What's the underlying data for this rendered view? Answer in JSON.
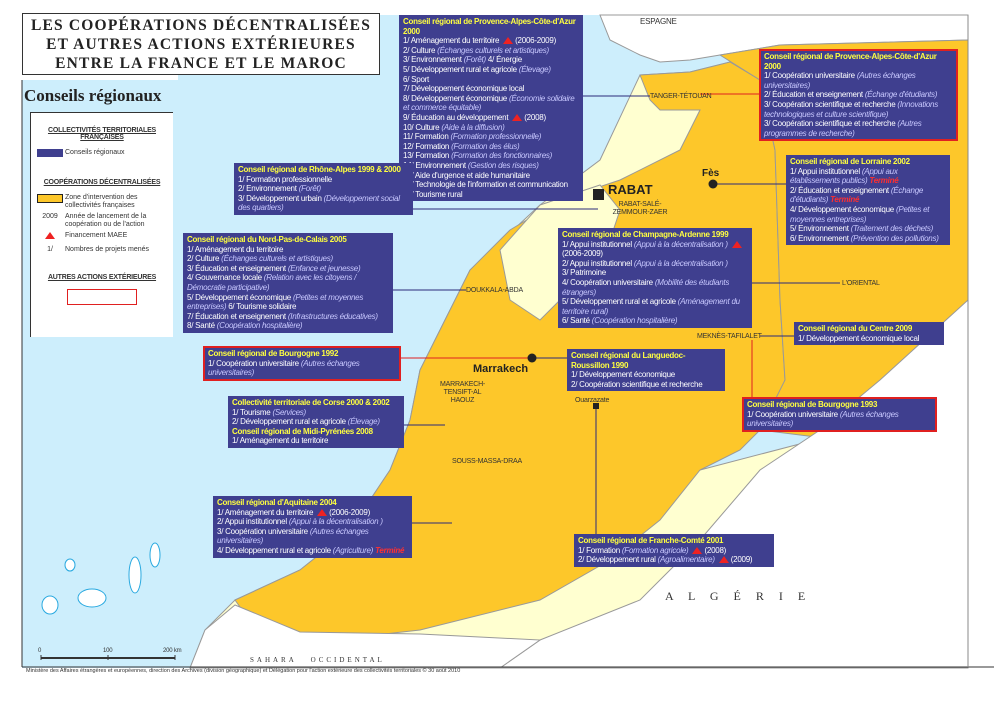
{
  "title": [
    "LES COOPÉRATIONS DÉCENTRALISÉES",
    "ET AUTRES ACTIONS EXTÉRIEURES",
    "ENTRE LA FRANCE ET LE MAROC"
  ],
  "subtitle": "Conseils régionaux",
  "colors": {
    "council_box": "#3f3f8f",
    "intervention_zone": "#fdc72a",
    "other_land": "#ffffd0",
    "sea": "#cdeefc",
    "maee": "#e22222",
    "other_actions_border": "#e02020",
    "title_text": "#ffff40"
  },
  "legend": {
    "section1": "COLLECTIVITÉS TERRITORIALES FRANÇAISES",
    "councils": "Conseils régionaux",
    "section2": "COOPÉRATIONS DÉCENTRALISÉES",
    "zone": "Zone d'intervention des collectivités françaises",
    "year_sample": "2009",
    "year": "Année de lancement de la coopération ou de l'action",
    "maee": "Financement MAEE",
    "num_sample": "1/",
    "num": "Nombres de projets menés",
    "section3": "AUTRES ACTIONS EXTÉRIEURES"
  },
  "map_labels": {
    "spain": "ESPAGNE",
    "tanger": "TANGER-TÉTOUAN",
    "rabat": "RABAT",
    "rabat_region": "RABAT-SALÉ-ZEMMOUR-ZAER",
    "fes": "Fès",
    "oriental": "L'ORIENTAL",
    "doukkala": "DOUKKALA-ABDA",
    "meknes": "MEKNÈS-TAFILALET",
    "marrakech": "Marrakech",
    "marrakech_region": "MARRAKECH-TENSIFT-AL HAOUZ",
    "ouarzazate": "Ouarzazate",
    "souss": "SOUSS-MASSA-DRAA",
    "algeria": "A L G É R I E",
    "sahara": "SAHARA   OCCIDENTAL"
  },
  "scale": {
    "s0": "0",
    "s100": "100",
    "s200": "200 km"
  },
  "footer": "Ministère des Affaires étrangères et européennes, direction des Archives (division géographique) et Délégation pour l'action extérieure des collectivités territoriales    © 30 août 2010",
  "boxes": [
    {
      "id": "paca-2000",
      "red": false,
      "lines": [
        {
          "t": "Conseil régional de Provence-Alpes-Côte-d'Azur 2000"
        },
        {
          "n": "1/",
          "l": "Aménagement du territoire",
          "m": true,
          "y": "(2006-2009)"
        },
        {
          "n": "2/",
          "l": "Culture",
          "d": "(Échanges culturels et artistiques)"
        },
        {
          "n": "3/",
          "l": "Environnement",
          "d": "(Forêt)",
          "x": "4/  Énergie"
        },
        {
          "n": "5/",
          "l": "Développement rural et agricole",
          "d": "(Élevage)"
        },
        {
          "n": "6/",
          "l": "Sport"
        },
        {
          "n": "7/",
          "l": "Développement économique local"
        },
        {
          "n": "8/",
          "l": "Développement économique",
          "d": "(Économie solidaire et commerce équitable)"
        },
        {
          "n": "9/",
          "l": "Éducation au développement",
          "m": true,
          "y": "(2008)"
        },
        {
          "n": "10/",
          "l": "Culture",
          "d": "(Aide à la diffusion)"
        },
        {
          "n": "11/",
          "l": "Formation",
          "d": "(Formation professionnelle)"
        },
        {
          "n": "12/",
          "l": "Formation",
          "d": "(Formation des élus)"
        },
        {
          "n": "13/",
          "l": "Formation",
          "d": "(Formation des fonctionnaires)"
        },
        {
          "n": "14/",
          "l": "Environnement",
          "d": "(Gestion des risques)"
        },
        {
          "n": "15/",
          "l": "Aide d'urgence et aide humanitaire"
        },
        {
          "n": "16/",
          "l": "Technologie de l'information et communication"
        },
        {
          "n": "17/",
          "l": "Tourisme rural"
        }
      ]
    },
    {
      "id": "paca-2000-other",
      "red": true,
      "lines": [
        {
          "t": "Conseil régional de Provence-Alpes-Côte-d'Azur 2000"
        },
        {
          "n": "1/",
          "l": "Coopération universitaire",
          "d": "(Autres échanges universitaires)"
        },
        {
          "n": "2/",
          "l": "Éducation et enseignement",
          "d": "(Échange d'étudiants)"
        },
        {
          "n": "3/",
          "l": "Coopération scientifique et recherche",
          "d": "(Innovations technologiques et culture scientifique)"
        },
        {
          "n": "3/",
          "l": "Coopération scientifique et recherche",
          "d": "(Autres programmes de recherche)"
        }
      ]
    },
    {
      "id": "lorraine-2002",
      "red": false,
      "lines": [
        {
          "t": "Conseil régional de Lorraine 2002"
        },
        {
          "n": "1/",
          "l": "Appui institutionnel",
          "d": "(Appui aux établissements publics)",
          "s": "Terminé"
        },
        {
          "n": "2/",
          "l": "Éducation et enseignement",
          "d": "(Échange d'étudiants)",
          "s": "Terminé"
        },
        {
          "n": "4/",
          "l": "Développement économique",
          "d": "(Petites et moyennes entreprises)"
        },
        {
          "n": "5/",
          "l": "Environnement",
          "d": "(Traitement des déchets)"
        },
        {
          "n": "6/",
          "l": "Environnement",
          "d": "(Prévention des pollutions)"
        }
      ]
    },
    {
      "id": "rhone-alpes",
      "red": false,
      "lines": [
        {
          "t": "Conseil régional de Rhône-Alpes 1999 & 2000"
        },
        {
          "n": "1/",
          "l": "Formation professionnelle"
        },
        {
          "n": "2/",
          "l": "Environnement",
          "d": "(Forêt)"
        },
        {
          "n": "3/",
          "l": "Développement urbain",
          "d": "(Développement social des quartiers)"
        }
      ]
    },
    {
      "id": "nord-pas-de-calais",
      "red": false,
      "lines": [
        {
          "t": "Conseil régional du Nord-Pas-de-Calais 2005"
        },
        {
          "n": "1/",
          "l": "Aménagement du territoire"
        },
        {
          "n": "2/",
          "l": "Culture",
          "d": "(Échanges culturels et artistiques)"
        },
        {
          "n": "3/",
          "l": "Éducation et enseignement",
          "d": "(Enfance et jeunesse)"
        },
        {
          "n": "4/",
          "l": "Gouvernance locale",
          "d": "(Relation avec les citoyens / Démocratie participative)"
        },
        {
          "n": "5/",
          "l": "Développement économique",
          "d": "(Petites et moyennes entreprises)",
          "x": "6/  Tourisme solidaire"
        },
        {
          "n": "7/",
          "l": "Éducation et enseignement",
          "d": "(Infrastructures éducatives)"
        },
        {
          "n": "8/",
          "l": "Santé",
          "d": "(Coopération hospitalière)"
        }
      ]
    },
    {
      "id": "bourgogne-1992",
      "red": true,
      "lines": [
        {
          "t": "Conseil régional de Bourgogne 1992"
        },
        {
          "n": "1/",
          "l": "Coopération universitaire",
          "d": "(Autres échanges universitaires)"
        }
      ]
    },
    {
      "id": "champagne-ardenne",
      "red": false,
      "lines": [
        {
          "t": "Conseil régional de Champagne-Ardenne 1999"
        },
        {
          "n": "1/",
          "l": "Appui institutionnel",
          "d": "(Appui à la décentralisation )",
          "m": true,
          "y": "(2006-2009)"
        },
        {
          "n": "2/",
          "l": "Appui institutionnel",
          "d": "(Appui à la décentralisation )"
        },
        {
          "n": "3/",
          "l": "Patrimoine"
        },
        {
          "n": "4/",
          "l": "Coopération universitaire",
          "d": "(Mobilité des étudiants étrangers)"
        },
        {
          "n": "5/",
          "l": "Développement rural et agricole",
          "d": "(Aménagement du territoire rural)"
        },
        {
          "n": "6/",
          "l": "Santé",
          "d": "(Coopération hospitalière)"
        }
      ]
    },
    {
      "id": "languedoc",
      "red": false,
      "lines": [
        {
          "t": "Conseil régional du Languedoc-Roussillon 1990"
        },
        {
          "n": "1/",
          "l": "Développement économique"
        },
        {
          "n": "2/",
          "l": "Coopération scientifique et recherche"
        }
      ]
    },
    {
      "id": "centre-2009",
      "red": false,
      "lines": [
        {
          "t": "Conseil régional du Centre 2009"
        },
        {
          "n": "1/",
          "l": "Développement économique local"
        }
      ]
    },
    {
      "id": "bourgogne-1993",
      "red": true,
      "lines": [
        {
          "t": "Conseil régional de Bourgogne 1993"
        },
        {
          "n": "1/",
          "l": "Coopération universitaire",
          "d": "(Autres échanges universitaires)"
        }
      ]
    },
    {
      "id": "corse-midi",
      "red": false,
      "lines": [
        {
          "t": "Collectivité territoriale de Corse 2000 & 2002"
        },
        {
          "n": "1/",
          "l": "Tourisme",
          "d": "(Services)"
        },
        {
          "n": "2/",
          "l": "Développement rural et agricole",
          "d": "(Élevage)"
        },
        {
          "t": "Conseil régional de Midi-Pyrénées 2008"
        },
        {
          "n": "1/",
          "l": "Aménagement du territoire"
        }
      ]
    },
    {
      "id": "aquitaine",
      "red": false,
      "lines": [
        {
          "t": "Conseil régional d'Aquitaine 2004"
        },
        {
          "n": "1/",
          "l": "Aménagement du territoire",
          "m": true,
          "y": "(2006-2009)"
        },
        {
          "n": "2/",
          "l": "Appui institutionnel",
          "d": "(Appui à la décentralisation )"
        },
        {
          "n": "3/",
          "l": "Coopération universitaire",
          "d": "(Autres échanges universitaires)"
        },
        {
          "n": "4/",
          "l": "Développement rural et agricole",
          "d": "(Agriculture)",
          "s": "Terminé"
        }
      ]
    },
    {
      "id": "franche-comte",
      "red": false,
      "lines": [
        {
          "t": "Conseil régional de Franche-Comté 2001"
        },
        {
          "n": "1/",
          "l": "Formation",
          "d": "(Formation agricole)",
          "m": true,
          "y": "(2008)"
        },
        {
          "n": "2/",
          "l": "Développement rural",
          "d": "(Agroalimentaire)",
          "m": true,
          "y": "(2009)"
        }
      ]
    }
  ]
}
